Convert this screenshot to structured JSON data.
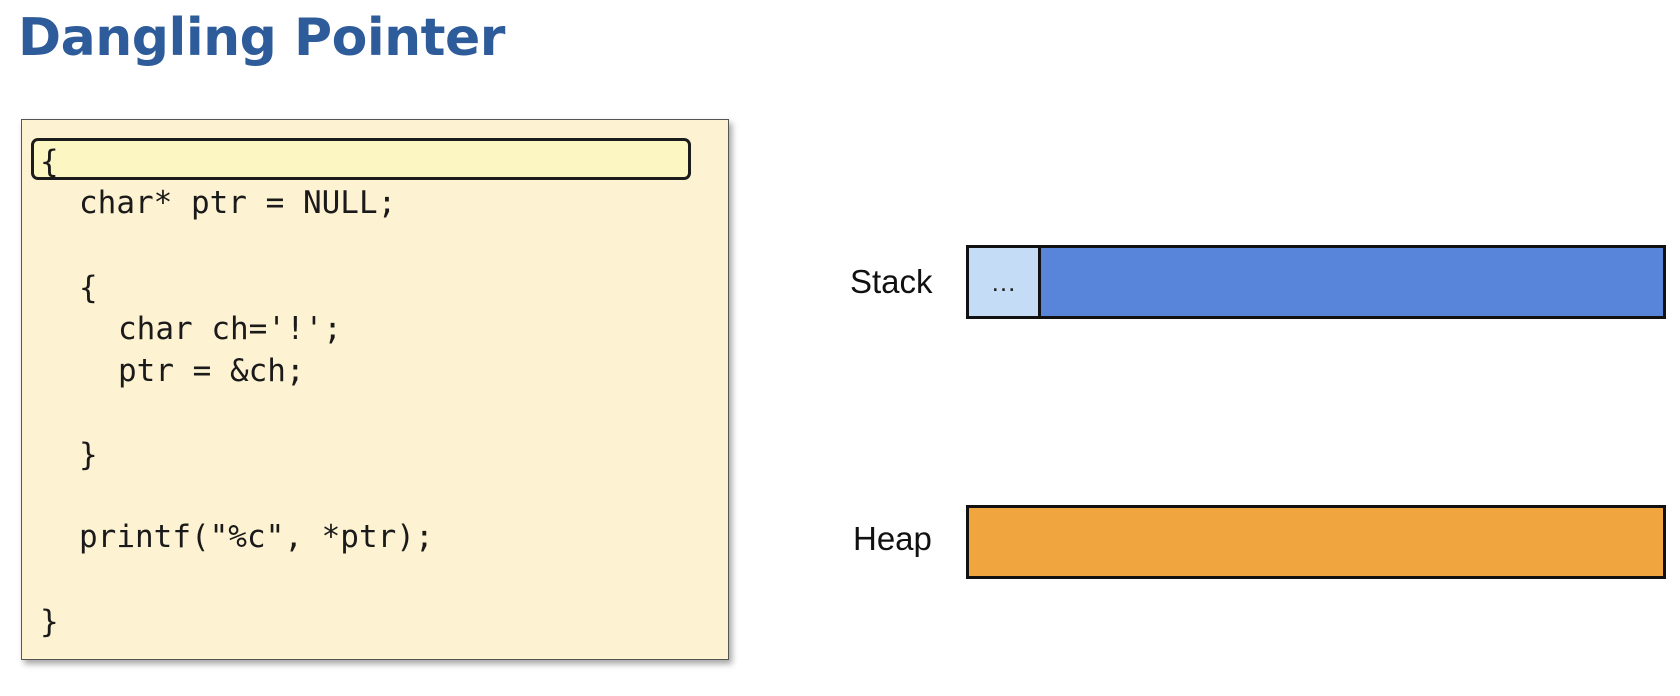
{
  "title": "Dangling Pointer",
  "code": {
    "lines": [
      "{",
      "char* ptr = NULL;",
      "{",
      "char ch='!';",
      "ptr = &ch;",
      "}",
      "printf(\"%c\", *ptr);",
      "}"
    ],
    "highlighted_line": 0
  },
  "memory": {
    "stack": {
      "label": "Stack",
      "cell_text": "…",
      "cell_color": "#c4dcf5",
      "color": "#5884d9"
    },
    "heap": {
      "label": "Heap",
      "color": "#f0a53f"
    }
  },
  "colors": {
    "title": "#2e5c9a",
    "code_background": "#fdf2d1",
    "highlight": "#fbf6c2"
  }
}
